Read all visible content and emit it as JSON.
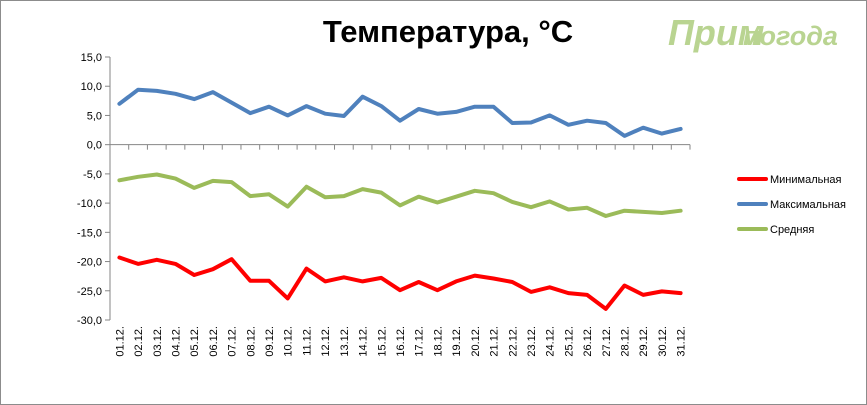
{
  "logo": {
    "part1": "Прим",
    "part2": "погода"
  },
  "chart_data": {
    "type": "line",
    "title": "Температура, °С",
    "xlabel": "",
    "ylabel": "",
    "ylim": [
      -30,
      15
    ],
    "ytick_step": 5,
    "ytick_labels": [
      "15,0",
      "10,0",
      "5,0",
      "0,0",
      "-5,0",
      "-10,0",
      "-15,0",
      "-20,0",
      "-25,0",
      "-30,0"
    ],
    "grid": false,
    "legend_position": "right",
    "categories": [
      "01.12.",
      "02.12.",
      "03.12.",
      "04.12.",
      "05.12.",
      "06.12.",
      "07.12.",
      "08.12.",
      "09.12.",
      "10.12.",
      "11.12.",
      "12.12.",
      "13.12.",
      "14.12.",
      "15.12.",
      "16.12.",
      "17.12.",
      "18.12.",
      "19.12.",
      "20.12.",
      "21.12.",
      "22.12.",
      "23.12.",
      "24.12.",
      "25.12.",
      "26.12.",
      "27.12.",
      "28.12.",
      "29.12.",
      "30.12.",
      "31.12."
    ],
    "series": [
      {
        "name": "Минимальная",
        "color": "#ff0000",
        "values": [
          -19.3,
          -20.4,
          -19.7,
          -20.4,
          -22.3,
          -21.3,
          -19.6,
          -23.3,
          -23.3,
          -26.3,
          -21.2,
          -23.4,
          -22.7,
          -23.4,
          -22.8,
          -24.9,
          -23.5,
          -24.9,
          -23.4,
          -22.4,
          -22.9,
          -23.5,
          -25.2,
          -24.4,
          -25.4,
          -25.7,
          -28.1,
          -24.1,
          -25.7,
          -25.1,
          -25.4
        ]
      },
      {
        "name": "Максимальная",
        "color": "#4f81bd",
        "values": [
          7.0,
          9.4,
          9.2,
          8.7,
          7.8,
          9.0,
          7.2,
          5.4,
          6.5,
          5.0,
          6.6,
          5.3,
          4.9,
          8.2,
          6.6,
          4.1,
          6.1,
          5.3,
          5.6,
          6.5,
          6.5,
          3.7,
          3.8,
          5.0,
          3.4,
          4.1,
          3.7,
          1.5,
          2.9,
          1.9,
          2.7
        ]
      },
      {
        "name": "Средняя",
        "color": "#9bbb59",
        "values": [
          -6.1,
          -5.5,
          -5.1,
          -5.8,
          -7.4,
          -6.2,
          -6.4,
          -8.8,
          -8.5,
          -10.6,
          -7.2,
          -9.0,
          -8.8,
          -7.6,
          -8.2,
          -10.4,
          -8.9,
          -9.9,
          -8.9,
          -7.9,
          -8.3,
          -9.8,
          -10.7,
          -9.7,
          -11.1,
          -10.8,
          -12.2,
          -11.3,
          -11.5,
          -11.7,
          -11.3
        ]
      }
    ]
  }
}
